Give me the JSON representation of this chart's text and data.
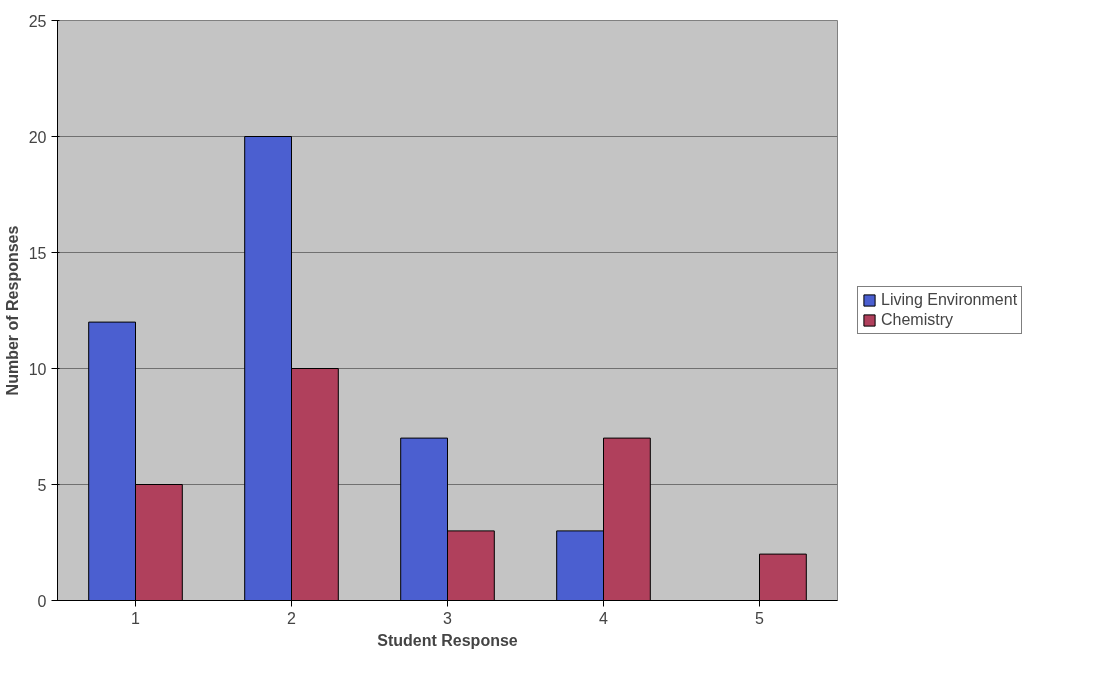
{
  "chart_data": {
    "type": "bar",
    "xlabel": "Student Response",
    "ylabel": "Number of Responses",
    "categories": [
      "1",
      "2",
      "3",
      "4",
      "5"
    ],
    "series": [
      {
        "name": "Living Environment",
        "color": "#4b5fd0",
        "values": [
          12,
          20,
          7,
          3,
          null
        ]
      },
      {
        "name": "Chemistry",
        "color": "#b0405c",
        "values": [
          5,
          10,
          3,
          7,
          2
        ]
      }
    ],
    "ylim": [
      0,
      25
    ],
    "yticks": [
      0,
      5,
      10,
      15,
      20,
      25
    ],
    "grid": "y",
    "legend": "right"
  }
}
